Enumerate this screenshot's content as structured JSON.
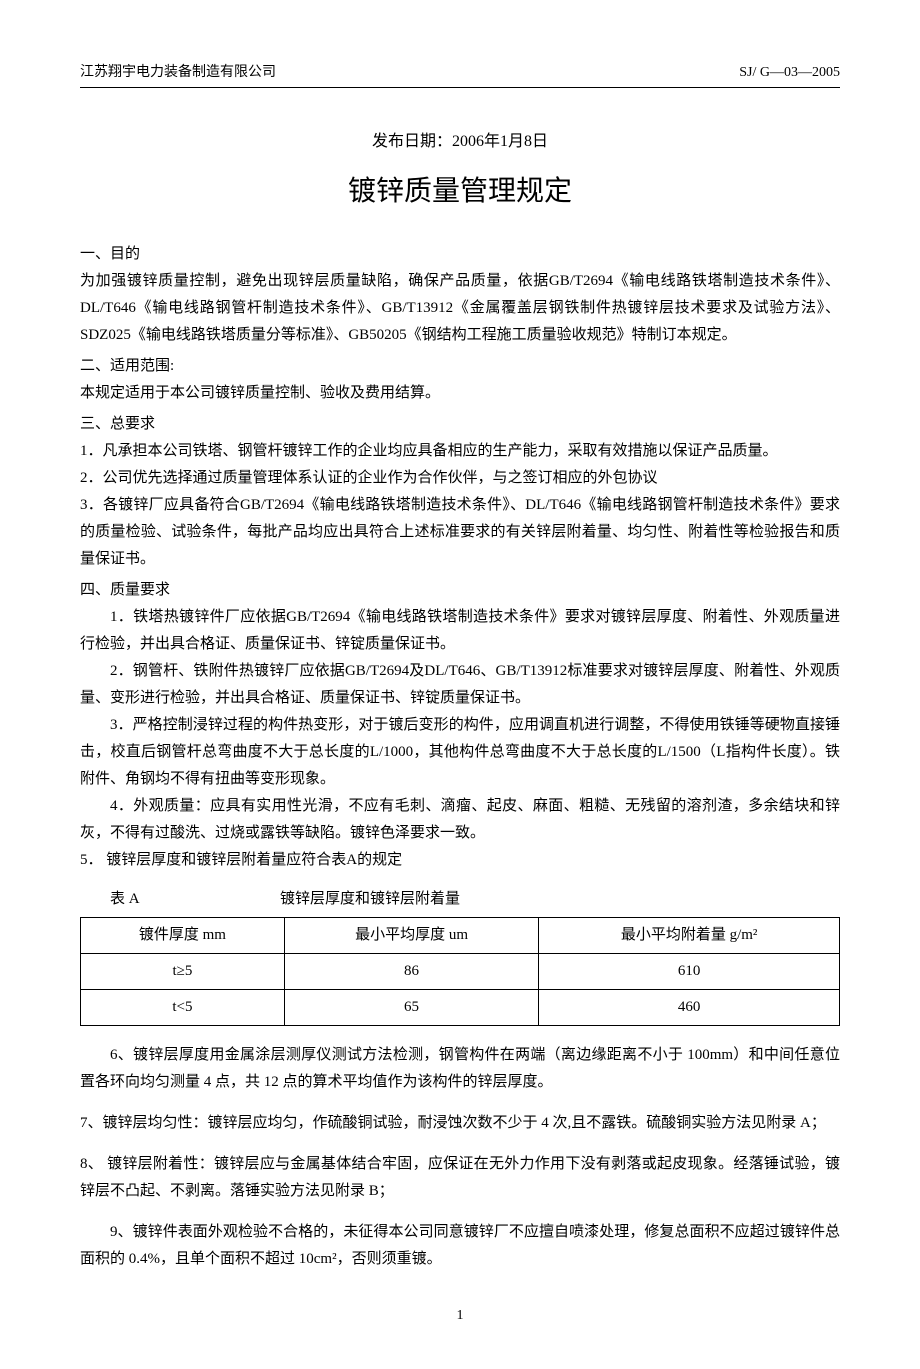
{
  "header": {
    "company": "江苏翔宇电力装备制造有限公司",
    "doc_code": "SJ/ G—03—2005"
  },
  "publish_date": "发布日期：2006年1月8日",
  "title": "镀锌质量管理规定",
  "sections": {
    "s1_title": "一、目的",
    "s1_body": "为加强镀锌质量控制，避免出现锌层质量缺陷，确保产品质量，依据GB/T2694《输电线路铁塔制造技术条件》、DL/T646《输电线路钢管杆制造技术条件》、GB/T13912《金属覆盖层钢铁制件热镀锌层技术要求及试验方法》、SDZ025《输电线路铁塔质量分等标准》、GB50205《钢结构工程施工质量验收规范》特制订本规定。",
    "s2_title": "二、适用范围:",
    "s2_body": "本规定适用于本公司镀锌质量控制、验收及费用结算。",
    "s3_title": "三、总要求",
    "s3_p1": "1．凡承担本公司铁塔、钢管杆镀锌工作的企业均应具备相应的生产能力，采取有效措施以保证产品质量。",
    "s3_p2": "2．公司优先选择通过质量管理体系认证的企业作为合作伙伴，与之签订相应的外包协议",
    "s3_p3": "3．各镀锌厂应具备符合GB/T2694《输电线路铁塔制造技术条件》、DL/T646《输电线路钢管杆制造技术条件》要求的质量检验、试验条件，每批产品均应出具符合上述标准要求的有关锌层附着量、均匀性、附着性等检验报告和质量保证书。",
    "s4_title": "四、质量要求",
    "s4_p1": "1．铁塔热镀锌件厂应依据GB/T2694《输电线路铁塔制造技术条件》要求对镀锌层厚度、附着性、外观质量进行检验，并出具合格证、质量保证书、锌锭质量保证书。",
    "s4_p2": "2．钢管杆、铁附件热镀锌厂应依据GB/T2694及DL/T646、GB/T13912标准要求对镀锌层厚度、附着性、外观质量、变形进行检验，并出具合格证、质量保证书、锌锭质量保证书。",
    "s4_p3": "3．严格控制浸锌过程的构件热变形，对于镀后变形的构件，应用调直机进行调整，不得使用铁锤等硬物直接锤击，校直后钢管杆总弯曲度不大于总长度的L/1000，其他构件总弯曲度不大于总长度的L/1500（L指构件长度）。铁附件、角钢均不得有扭曲等变形现象。",
    "s4_p4": "4．外观质量：应具有实用性光滑，不应有毛刺、滴瘤、起皮、麻面、粗糙、无残留的溶剂渣，多余结块和锌灰，不得有过酸洗、过烧或露铁等缺陷。镀锌色泽要求一致。",
    "s4_p5": "5．   镀锌层厚度和镀锌层附着量应符合表A的规定",
    "s4_p6": "6、镀锌层厚度用金属涂层测厚仪测试方法检测，钢管构件在两端（离边缘距离不小于 100mm）和中间任意位置各环向均匀测量 4 点，共 12 点的算术平均值作为该构件的锌层厚度。",
    "s4_p7": "7、镀锌层均匀性：镀锌层应均匀，作硫酸铜试验，耐浸蚀次数不少于 4 次,且不露铁。硫酸铜实验方法见附录 A；",
    "s4_p8": "8、 镀锌层附着性：镀锌层应与金属基体结合牢固，应保证在无外力作用下没有剥落或起皮现象。经落锤试验，镀锌层不凸起、不剥离。落锤实验方法见附录 B；",
    "s4_p9": "9、镀锌件表面外观检验不合格的，未征得本公司同意镀锌厂不应擅自喷漆处理，修复总面积不应超过镀锌件总面积的 0.4%，且单个面积不超过 10cm²，否则须重镀。"
  },
  "table": {
    "caption_label": "表 A",
    "caption_title": "镀锌层厚度和镀锌层附着量",
    "columns": [
      "镀件厚度 mm",
      "最小平均厚度 um",
      "最小平均附着量 g/m²"
    ],
    "rows": [
      [
        "t≥5",
        "86",
        "610"
      ],
      [
        "t<5",
        "65",
        "460"
      ]
    ]
  },
  "page_number": "1"
}
